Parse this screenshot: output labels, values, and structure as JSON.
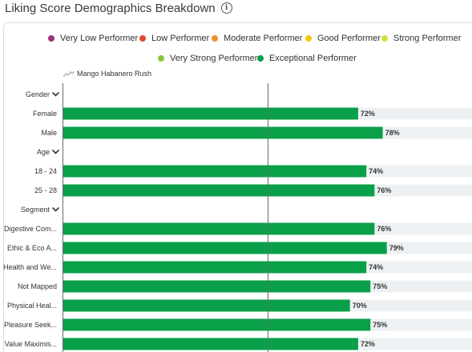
{
  "header": {
    "title": "Liking Score Demographics Breakdown",
    "info_icon": "info-icon"
  },
  "legend": [
    {
      "label": "Very Low Performer",
      "color": "#a0307a"
    },
    {
      "label": "Low Performer",
      "color": "#e04a3a"
    },
    {
      "label": "Moderate Performer",
      "color": "#f0902a"
    },
    {
      "label": "Good Performer",
      "color": "#f2c811"
    },
    {
      "label": "Strong Performer",
      "color": "#d4de38"
    },
    {
      "label": "Very Strong Performer",
      "color": "#8cc63f"
    },
    {
      "label": "Exceptional Performer",
      "color": "#0aa04a"
    }
  ],
  "series_label": "Mango Habanero Rush",
  "colors": {
    "bar": "#0aa04a",
    "track": "#eef1f3",
    "axis": "#6b6b6b",
    "chevron": "#333333"
  },
  "chart_data": {
    "type": "bar",
    "orientation": "horizontal",
    "series": [
      {
        "name": "Mango Habanero Rush"
      }
    ],
    "xlim": [
      0,
      100
    ],
    "reference_line": 50,
    "rows": [
      {
        "kind": "group",
        "label": "Gender"
      },
      {
        "kind": "bar",
        "label": "Female",
        "value": 72,
        "display": "72%"
      },
      {
        "kind": "bar",
        "label": "Male",
        "value": 78,
        "display": "78%"
      },
      {
        "kind": "group",
        "label": "Age"
      },
      {
        "kind": "bar",
        "label": "18 - 24",
        "value": 74,
        "display": "74%"
      },
      {
        "kind": "bar",
        "label": "25 - 28",
        "value": 76,
        "display": "76%"
      },
      {
        "kind": "group",
        "label": "Segment"
      },
      {
        "kind": "bar",
        "label": "Digestive Com...",
        "value": 76,
        "display": "76%"
      },
      {
        "kind": "bar",
        "label": "Ethic & Eco A...",
        "value": 79,
        "display": "79%"
      },
      {
        "kind": "bar",
        "label": "Health and We...",
        "value": 74,
        "display": "74%"
      },
      {
        "kind": "bar",
        "label": "Not Mapped",
        "value": 75,
        "display": "75%"
      },
      {
        "kind": "bar",
        "label": "Physical Heal...",
        "value": 70,
        "display": "70%"
      },
      {
        "kind": "bar",
        "label": "Pleasure Seek...",
        "value": 75,
        "display": "75%"
      },
      {
        "kind": "bar",
        "label": "Value Maximis...",
        "value": 72,
        "display": "72%"
      }
    ]
  }
}
